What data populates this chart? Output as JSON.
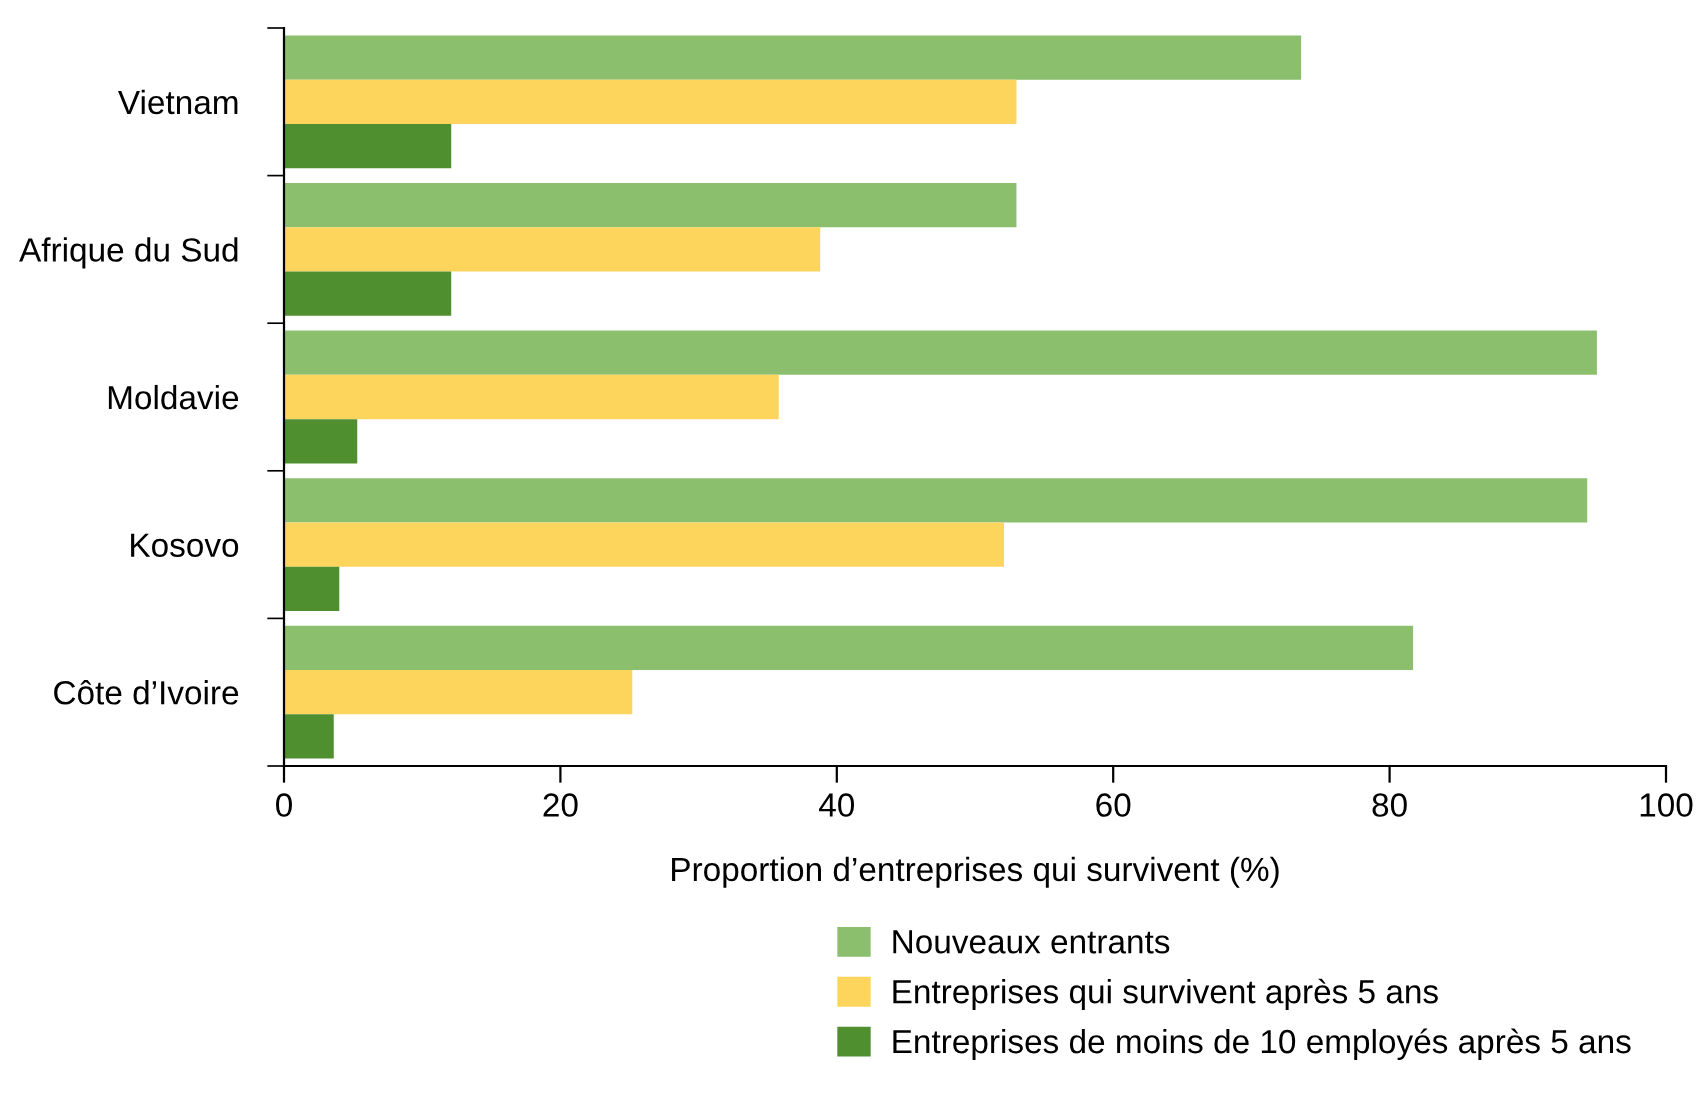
{
  "chart_data": {
    "type": "bar",
    "orientation": "horizontal",
    "xlabel": "Proportion d’entreprises qui survivent (%)",
    "categories": [
      "Vietnam",
      "Afrique du Sud",
      "Moldavie",
      "Kosovo",
      "Côte d’Ivoire"
    ],
    "series": [
      {
        "name": "Nouveaux entrants",
        "color": "#8bbf6e",
        "values": [
          73.6,
          53.0,
          95.0,
          94.3,
          81.7
        ]
      },
      {
        "name": "Entreprises qui survivent après 5 ans",
        "color": "#fdd55c",
        "values": [
          53.0,
          38.8,
          35.8,
          52.1,
          25.2
        ]
      },
      {
        "name": "Entreprises de moins de 10 employés après 5 ans",
        "color": "#4f8f30",
        "values": [
          12.1,
          12.1,
          5.3,
          4.0,
          3.6
        ]
      }
    ],
    "xlim": [
      0,
      100
    ],
    "xticks": [
      0,
      20,
      40,
      60,
      80,
      100
    ],
    "grid": false,
    "legend": "bottom"
  }
}
